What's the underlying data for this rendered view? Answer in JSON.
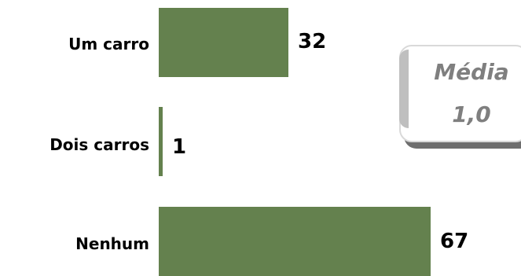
{
  "chart_data": {
    "type": "bar",
    "orientation": "horizontal",
    "categories": [
      "Um carro",
      "Dois carros",
      "Nenhum"
    ],
    "values": [
      32,
      1,
      67
    ],
    "xlim": [
      0,
      67
    ],
    "grid": false,
    "bar_color": "#64814e"
  },
  "mean_box": {
    "title": "Média",
    "value": "1,0"
  }
}
